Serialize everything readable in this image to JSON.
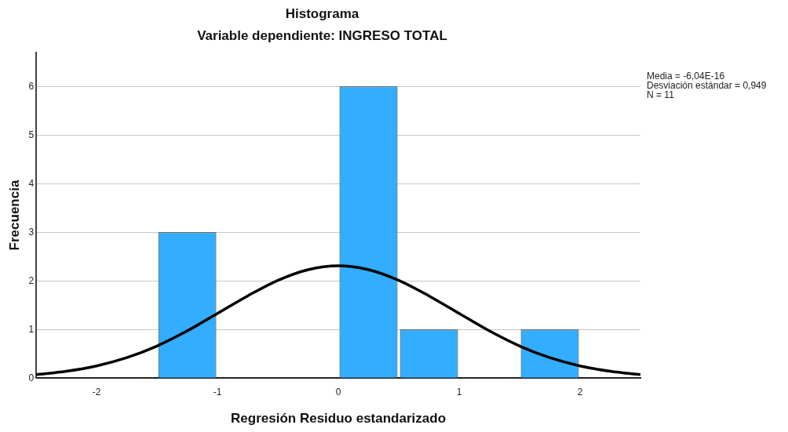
{
  "chart_data": {
    "type": "histogram",
    "title": "Histograma",
    "subtitle": "Variable dependiente: INGRESO TOTAL",
    "xlabel": "Regresión Residuo estandarizado",
    "ylabel": "Frecuencia",
    "bins": [
      -1.5,
      -1,
      -0.5,
      0,
      0.5,
      1,
      1.5,
      2
    ],
    "values": [
      3,
      0,
      0,
      6,
      1,
      0,
      1
    ],
    "color": "#33adff",
    "series": [
      {
        "type": "line",
        "color": "#000000",
        "x": [
          -2.5,
          -2.25,
          -2,
          -1.75,
          -1.5,
          -1.25,
          -1,
          -0.75,
          -0.5,
          -0.25,
          0,
          0.25,
          0.5,
          0.75,
          1,
          1.25,
          1.5,
          1.75,
          2,
          2.25,
          2.5
        ],
        "values": [
          0.07,
          0.14,
          0.25,
          0.42,
          0.66,
          0.97,
          1.33,
          1.69,
          2.01,
          2.23,
          2.31,
          2.23,
          2.01,
          1.69,
          1.33,
          0.97,
          0.66,
          0.42,
          0.25,
          0.14,
          0.07
        ]
      }
    ],
    "xlim": [
      -2.5,
      2.5
    ],
    "xticks": [
      -2,
      -1,
      0,
      1,
      2
    ],
    "ylim": [
      0,
      6.7
    ],
    "yticks": [
      0,
      1,
      2,
      3,
      4,
      5,
      6
    ],
    "grid": "y",
    "legend": false,
    "annotations": [
      "Media = -6,04E-16",
      "Desviación estándar = 0,949",
      "N = 11"
    ]
  }
}
